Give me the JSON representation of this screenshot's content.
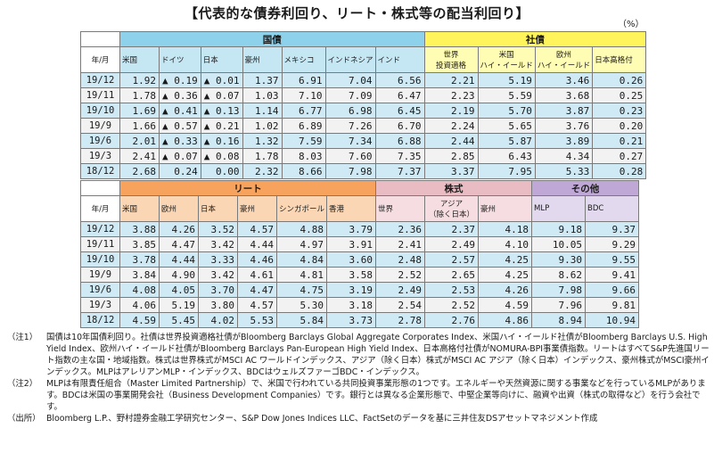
{
  "title": "【代表的な債券利回り、リート・株式等の配当利回り】",
  "unit": "（%）",
  "table1": {
    "groups": [
      {
        "label": "国債"
      },
      {
        "label": "社債"
      }
    ],
    "corner": "年/月",
    "columns": [
      "米国",
      "ドイツ",
      "日本",
      "豪州",
      "メキシコ",
      "インドネシア",
      "インド",
      "世界投資適格",
      "米国ハイ・イールド",
      "欧州ハイ・イールド",
      "日本高格付"
    ],
    "columns_display": [
      [
        "米国"
      ],
      [
        "ドイツ"
      ],
      [
        "日本"
      ],
      [
        "豪州"
      ],
      [
        "メキシコ"
      ],
      [
        "インドネシア"
      ],
      [
        "インド"
      ],
      [
        "世界",
        "投資適格"
      ],
      [
        "米国",
        "ハイ・イールド"
      ],
      [
        "欧州",
        "ハイ・イールド"
      ],
      [
        "日本高格付"
      ]
    ],
    "rows": [
      {
        "label": "19/12",
        "cells": [
          "1.92",
          "▲ 0.19",
          "▲ 0.01",
          "1.37",
          "6.91",
          "7.04",
          "6.56",
          "2.21",
          "5.19",
          "3.46",
          "0.26"
        ]
      },
      {
        "label": "19/11",
        "cells": [
          "1.78",
          "▲ 0.36",
          "▲ 0.07",
          "1.03",
          "7.10",
          "7.09",
          "6.47",
          "2.23",
          "5.59",
          "3.68",
          "0.25"
        ]
      },
      {
        "label": "19/10",
        "cells": [
          "1.69",
          "▲ 0.41",
          "▲ 0.13",
          "1.14",
          "6.77",
          "6.98",
          "6.45",
          "2.19",
          "5.70",
          "3.87",
          "0.23"
        ]
      },
      {
        "label": "19/9",
        "cells": [
          "1.66",
          "▲ 0.57",
          "▲ 0.21",
          "1.02",
          "6.89",
          "7.26",
          "6.70",
          "2.24",
          "5.65",
          "3.76",
          "0.20"
        ]
      },
      {
        "label": "19/6",
        "cells": [
          "2.01",
          "▲ 0.33",
          "▲ 0.16",
          "1.32",
          "7.59",
          "7.34",
          "6.88",
          "2.44",
          "5.87",
          "3.89",
          "0.21"
        ]
      },
      {
        "label": "19/3",
        "cells": [
          "2.41",
          "▲ 0.07",
          "▲ 0.08",
          "1.78",
          "8.03",
          "7.60",
          "7.35",
          "2.85",
          "6.43",
          "4.34",
          "0.27"
        ]
      },
      {
        "label": "18/12",
        "cells": [
          "2.68",
          "0.24",
          "0.00",
          "2.32",
          "8.66",
          "7.98",
          "7.37",
          "3.37",
          "7.95",
          "5.33",
          "0.28"
        ]
      }
    ]
  },
  "table2": {
    "groups": [
      {
        "label": "リート"
      },
      {
        "label": "株式"
      },
      {
        "label": "その他"
      }
    ],
    "columns": [
      "米国",
      "欧州",
      "日本",
      "豪州",
      "シンガポール",
      "香港",
      "世界",
      "アジア（除く日本）",
      "豪州",
      "MLP",
      "BDC"
    ],
    "columns_display": [
      [
        "米国"
      ],
      [
        "欧州"
      ],
      [
        "日本"
      ],
      [
        "豪州"
      ],
      [
        "シンガポール"
      ],
      [
        "香港"
      ],
      [
        "世界"
      ],
      [
        "アジア",
        "（除く日本）"
      ],
      [
        "豪州"
      ],
      [
        "MLP"
      ],
      [
        "BDC"
      ]
    ],
    "rows": [
      {
        "label": "19/12",
        "cells": [
          "3.88",
          "4.26",
          "3.52",
          "4.57",
          "4.88",
          "3.79",
          "2.36",
          "2.37",
          "4.18",
          "9.18",
          "9.37"
        ]
      },
      {
        "label": "19/11",
        "cells": [
          "3.85",
          "4.47",
          "3.42",
          "4.44",
          "4.97",
          "3.91",
          "2.41",
          "2.49",
          "4.10",
          "10.05",
          "9.29"
        ]
      },
      {
        "label": "19/10",
        "cells": [
          "3.78",
          "4.44",
          "3.33",
          "4.46",
          "4.84",
          "3.60",
          "2.48",
          "2.57",
          "4.25",
          "9.30",
          "9.55"
        ]
      },
      {
        "label": "19/9",
        "cells": [
          "3.84",
          "4.90",
          "3.42",
          "4.61",
          "4.81",
          "3.58",
          "2.52",
          "2.65",
          "4.25",
          "8.62",
          "9.41"
        ]
      },
      {
        "label": "19/6",
        "cells": [
          "4.08",
          "4.05",
          "3.70",
          "4.47",
          "4.75",
          "3.19",
          "2.49",
          "2.53",
          "4.26",
          "7.98",
          "9.66"
        ]
      },
      {
        "label": "19/3",
        "cells": [
          "4.06",
          "5.19",
          "3.80",
          "4.57",
          "5.30",
          "3.18",
          "2.54",
          "2.52",
          "4.59",
          "7.96",
          "9.81"
        ]
      },
      {
        "label": "18/12",
        "cells": [
          "4.59",
          "5.45",
          "4.02",
          "5.53",
          "5.84",
          "3.73",
          "2.78",
          "2.76",
          "4.86",
          "8.94",
          "10.94"
        ]
      }
    ]
  },
  "notes": [
    {
      "label": "（注1）",
      "text": "国債は10年国債利回り。社債は世界投資適格社債がBloomberg Barclays Global Aggregate Corporates Index、米国ハイ・イールド社債がBloomberg Barclays U.S. High Yield Index、欧州ハイ・イールド社債がBloomberg Barclays Pan-European High Yield Index、日本高格付社債がNOMURA-BPI事業債指数。リートはすべてS&P先進国リート指数の主な国・地域指数。株式は世界株式がMSCI AC ワールドインデックス、アジア（除く日本）株式がMSCI AC アジア（除く日本）インデックス、豪州株式がMSCI豪州インデックス。MLPはアレリアンMLP・インデックス、BDCはウェルズファーゴBDC・インデックス。"
    },
    {
      "label": "（注2）",
      "text": "MLPは有限責任組合（Master Limited Partnership）で、米国で行われている共同投資事業形態の1つです。エネルギーや天然資源に関する事業などを行っているMLPがあります。BDCは米国の事業開発会社（Business Development Companies）です。銀行とは異なる企業形態で、中堅企業等向けに、融資や出資（株式の取得など）を行う会社です。"
    },
    {
      "label": "（出所）",
      "text": "Bloomberg L.P.、野村證券金融工学研究センター、S&P Dow Jones Indices LLC、FactSetのデータを基に三井住友DSアセットマネジメント作成"
    }
  ]
}
